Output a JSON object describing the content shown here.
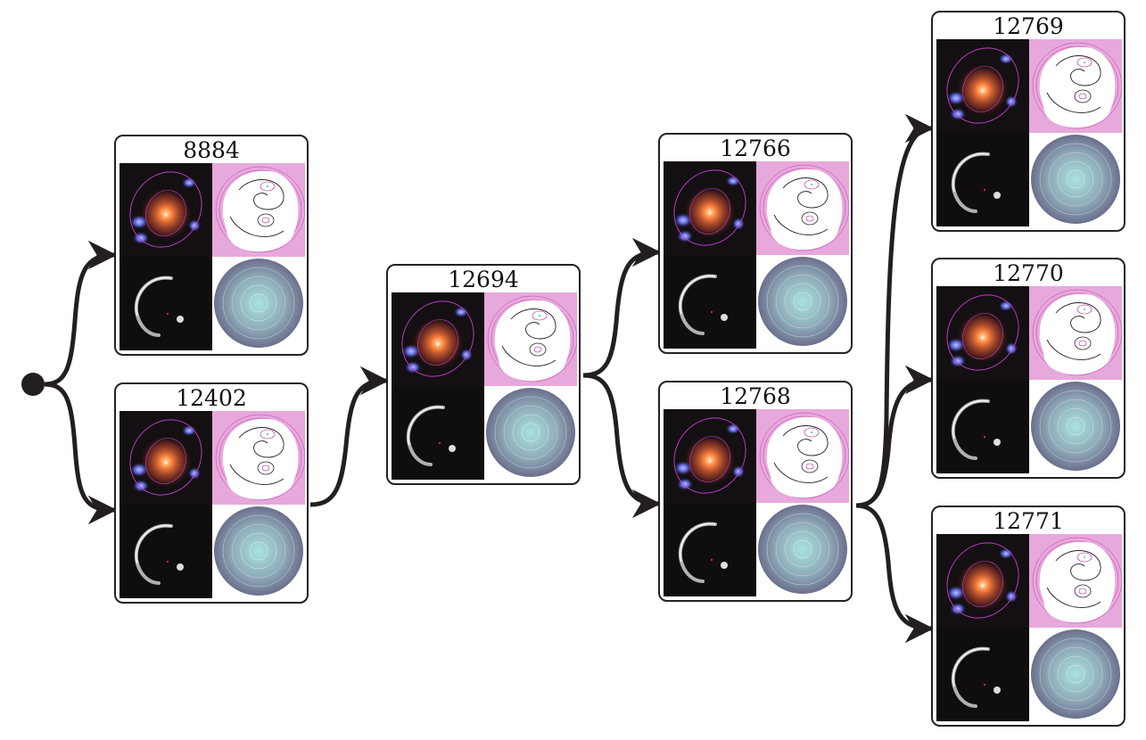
{
  "nodes": [
    {
      "id": "8884",
      "title": "8884"
    },
    {
      "id": "12402",
      "title": "12402"
    },
    {
      "id": "12694",
      "title": "12694"
    },
    {
      "id": "12766",
      "title": "12766"
    },
    {
      "id": "12768",
      "title": "12768"
    },
    {
      "id": "12769",
      "title": "12769"
    },
    {
      "id": "12770",
      "title": "12770"
    },
    {
      "id": "12771",
      "title": "12771"
    }
  ],
  "edges": [
    {
      "from": "root",
      "to": "8884"
    },
    {
      "from": "root",
      "to": "12402"
    },
    {
      "from": "12402",
      "to": "12694"
    },
    {
      "from": "12694",
      "to": "12766"
    },
    {
      "from": "12694",
      "to": "12768"
    },
    {
      "from": "12768",
      "to": "12769"
    },
    {
      "from": "12768",
      "to": "12770"
    },
    {
      "from": "12768",
      "to": "12771"
    }
  ],
  "panels": [
    "observed-image",
    "source-contour",
    "model-arc",
    "pixelated-disk"
  ],
  "colors": {
    "edge": "#231f20",
    "frame": "#222222",
    "contour-fill": "#e7a8dc",
    "contour-line": "#a0208f",
    "galaxy": "#f47a3a",
    "arc": "#eeeeee",
    "disk": "#8fbfc6"
  }
}
